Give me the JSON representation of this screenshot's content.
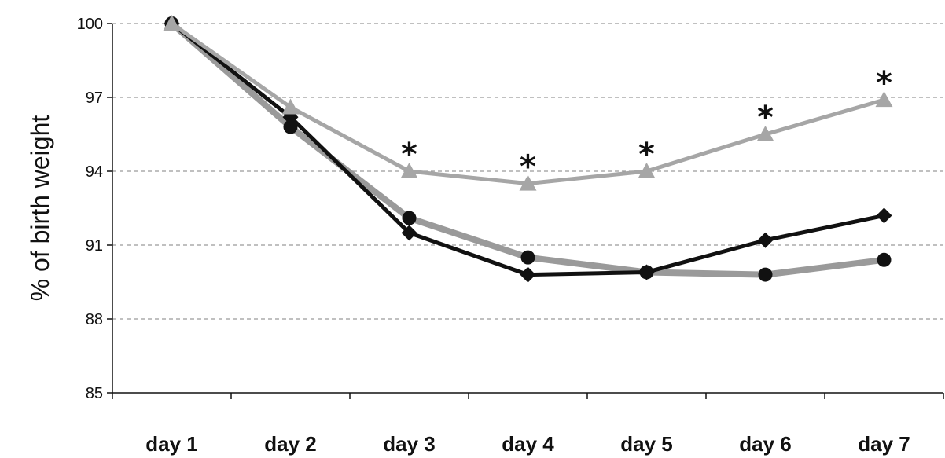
{
  "chart_data": {
    "type": "line",
    "title": "",
    "xlabel": "",
    "ylabel": "% of birth weight",
    "categories": [
      "day 1",
      "day 2",
      "day 3",
      "day 4",
      "day 5",
      "day 6",
      "day 7"
    ],
    "ylim": [
      85,
      100
    ],
    "yticks": [
      "85",
      "88",
      "91",
      "94",
      "97",
      "100"
    ],
    "grid": "horizontal-dashed",
    "series": [
      {
        "marker": "circle",
        "color": "#9a9a9a",
        "marker_color": "#111111",
        "values": [
          100,
          95.8,
          92.1,
          90.5,
          89.9,
          89.8,
          90.4
        ]
      },
      {
        "marker": "diamond",
        "color": "#111111",
        "marker_color": "#111111",
        "values": [
          100,
          96.2,
          91.5,
          89.8,
          89.9,
          91.2,
          92.2
        ]
      },
      {
        "marker": "triangle",
        "color": "#a6a6a6",
        "marker_color": "#a6a6a6",
        "values": [
          100,
          96.6,
          94.0,
          93.5,
          94.0,
          95.5,
          96.9
        ]
      }
    ],
    "annotations": [
      {
        "text": "*",
        "category": "day 3"
      },
      {
        "text": "*",
        "category": "day 4"
      },
      {
        "text": "*",
        "category": "day 5"
      },
      {
        "text": "*",
        "category": "day 6"
      },
      {
        "text": "*",
        "category": "day 7"
      }
    ]
  }
}
